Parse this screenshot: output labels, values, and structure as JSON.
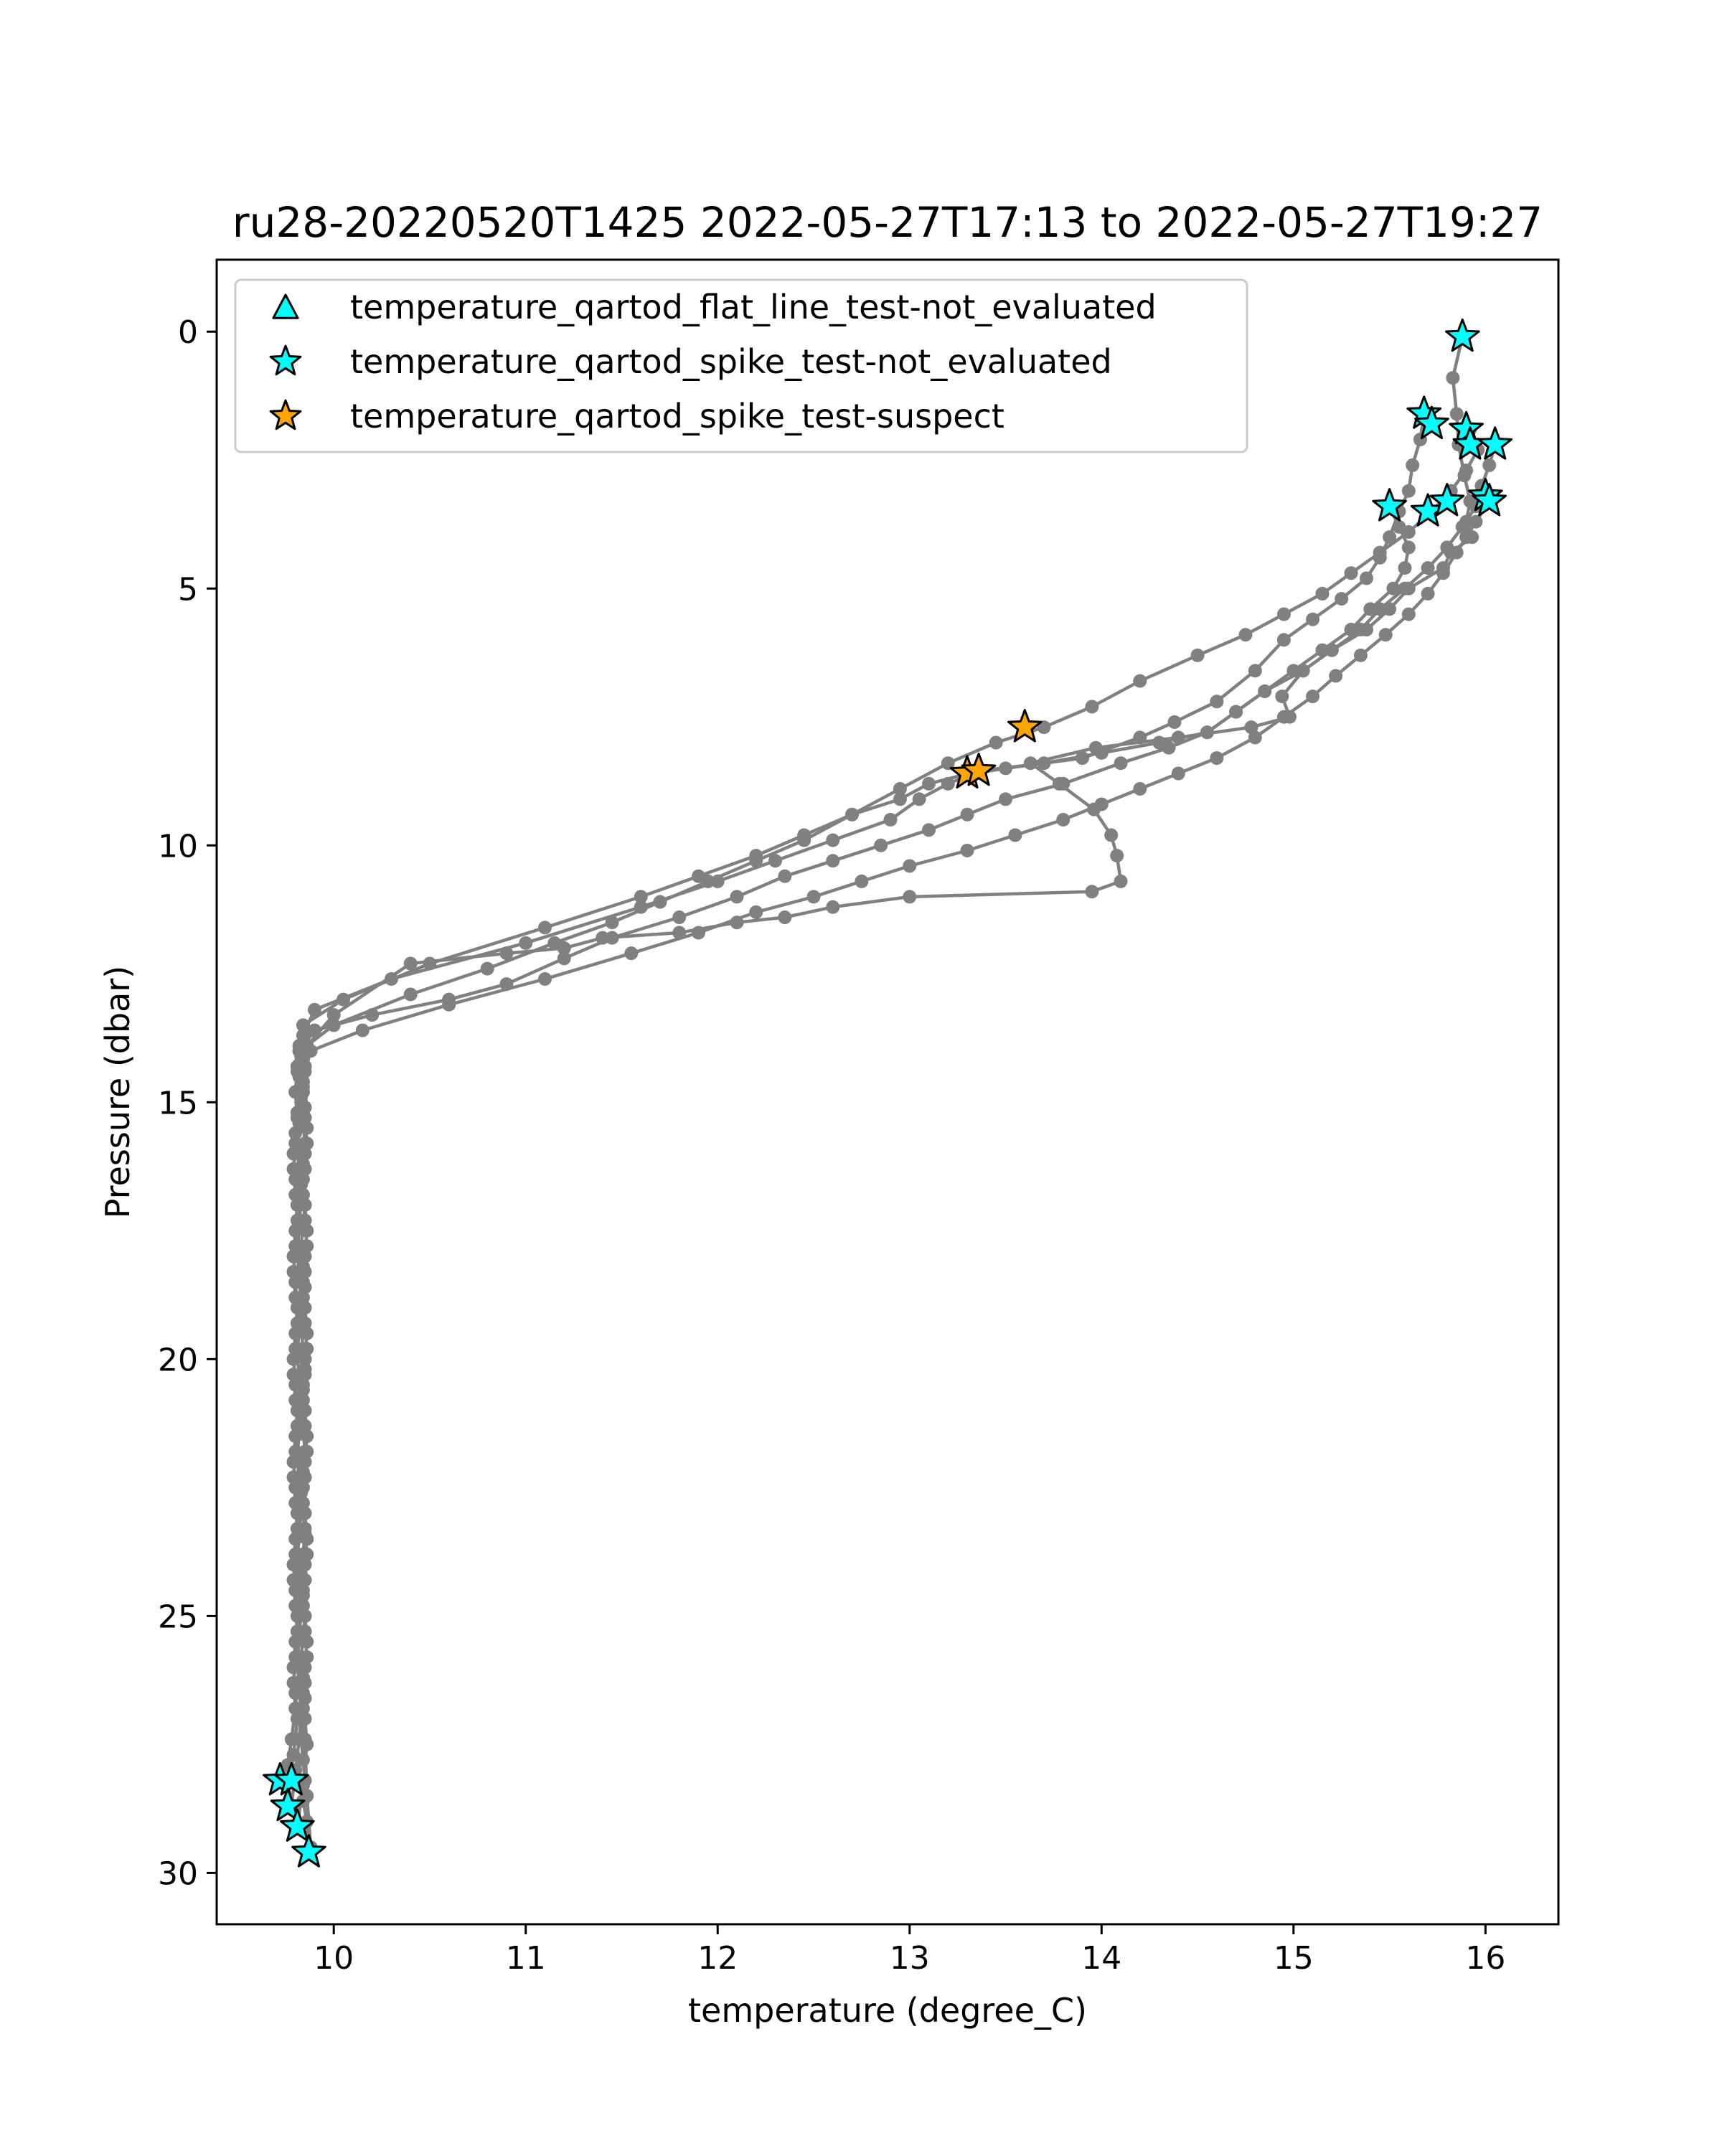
{
  "chart_data": {
    "type": "line",
    "title": "ru28-20220520T1425 2022-05-27T17:13 to 2022-05-27T19:27",
    "xlabel": "temperature (degree_C)",
    "ylabel": "Pressure (dbar)",
    "xlim": [
      9.39,
      16.38
    ],
    "ylim": [
      31.0,
      -1.4
    ],
    "y_inverted": true,
    "grid": false,
    "legend_position": "top-left",
    "xticks": [
      10,
      11,
      12,
      13,
      14,
      15,
      16
    ],
    "yticks": [
      0,
      5,
      10,
      15,
      20,
      25,
      30
    ],
    "line_color": "#808080",
    "profiles": [
      {
        "x": [
          15.88,
          15.83,
          15.85,
          15.86,
          15.89,
          15.92,
          15.9,
          15.93,
          15.82,
          15.78,
          15.6,
          15.5,
          15.38,
          15.2,
          15.05,
          14.94,
          14.98,
          14.78,
          14.4,
          13.97,
          13.63,
          13.78,
          13.96,
          14.05,
          14.08,
          14.1,
          13.95,
          13.0,
          12.6,
          12.35,
          12.1,
          11.8,
          11.4,
          11.2,
          10.9,
          10.4,
          10.0,
          9.86,
          9.83,
          9.84,
          9.83,
          9.84,
          9.85,
          9.84,
          9.83,
          9.85,
          9.84,
          9.83,
          9.84,
          9.85,
          9.84,
          9.83,
          9.84,
          9.85,
          9.84,
          9.83,
          9.84,
          9.85,
          9.84,
          9.83,
          9.84,
          9.85,
          9.84,
          9.83,
          9.84,
          9.85,
          9.84,
          9.83,
          9.84,
          9.85,
          9.84,
          9.83,
          9.84,
          9.85,
          9.84,
          9.86,
          9.87
        ],
        "y": [
          0.1,
          0.9,
          1.6,
          2.2,
          2.8,
          3.3,
          3.7,
          4.0,
          4.3,
          4.6,
          5.0,
          5.4,
          5.8,
          6.2,
          6.6,
          7.1,
          7.5,
          7.7,
          7.9,
          8.1,
          8.4,
          8.8,
          9.3,
          9.8,
          10.2,
          10.7,
          10.9,
          11.0,
          11.2,
          11.4,
          11.5,
          11.7,
          11.8,
          12.0,
          12.1,
          12.3,
          13.3,
          13.9,
          14.2,
          14.6,
          15.0,
          15.4,
          15.8,
          16.2,
          16.6,
          17.0,
          17.4,
          17.8,
          18.2,
          18.6,
          19.0,
          19.4,
          19.8,
          20.2,
          20.6,
          21.0,
          21.4,
          21.8,
          22.2,
          22.6,
          23.0,
          23.4,
          23.8,
          24.2,
          24.6,
          25.0,
          25.4,
          25.8,
          26.2,
          26.6,
          27.0,
          27.4,
          27.8,
          28.2,
          28.6,
          29.0,
          29.6
        ]
      },
      {
        "x": [
          15.68,
          15.66,
          15.62,
          15.6,
          15.55,
          15.5,
          15.45,
          15.38,
          15.25,
          15.1,
          14.95,
          14.8,
          14.6,
          14.38,
          14.2,
          13.9,
          13.5,
          13.33,
          13.2,
          13.05,
          12.9,
          12.6,
          12.3,
          12.0,
          11.6,
          11.0,
          10.3,
          9.9,
          9.84,
          9.83,
          9.82,
          9.83,
          9.82,
          9.81,
          9.82,
          9.83,
          9.82,
          9.81,
          9.82,
          9.83,
          9.82,
          9.81,
          9.82,
          9.83,
          9.82,
          9.81,
          9.82,
          9.83,
          9.82,
          9.81,
          9.82,
          9.83,
          9.82,
          9.81,
          9.82,
          9.83,
          9.82,
          9.8,
          9.78
        ],
        "y": [
          1.6,
          2.1,
          2.6,
          3.1,
          3.5,
          4.0,
          4.4,
          4.8,
          5.2,
          5.6,
          6.0,
          6.6,
          7.2,
          7.6,
          7.9,
          8.3,
          8.5,
          8.6,
          8.8,
          9.1,
          9.5,
          9.9,
          10.3,
          10.7,
          11.2,
          11.9,
          12.6,
          13.2,
          13.7,
          14.1,
          14.5,
          14.9,
          15.4,
          15.9,
          16.4,
          16.9,
          17.4,
          17.9,
          18.4,
          18.9,
          19.4,
          19.9,
          20.4,
          20.9,
          21.4,
          21.9,
          22.4,
          22.9,
          23.4,
          23.9,
          24.4,
          24.9,
          25.4,
          25.9,
          26.4,
          26.9,
          27.4,
          28.0,
          28.7
        ]
      },
      {
        "x": [
          16.05,
          16.02,
          15.98,
          15.95,
          15.88,
          15.8,
          15.7,
          15.58,
          15.45,
          15.35,
          15.2,
          15.05,
          14.85,
          14.7,
          14.55,
          14.3,
          14.0,
          13.7,
          13.36,
          13.1,
          12.95,
          12.7,
          12.45,
          12.2,
          11.9,
          11.6,
          11.1,
          10.5,
          10.05,
          9.84,
          9.82,
          9.81,
          9.8,
          9.81,
          9.8,
          9.79,
          9.8,
          9.81,
          9.8,
          9.79,
          9.8,
          9.81,
          9.8,
          9.79,
          9.8,
          9.81,
          9.8,
          9.79,
          9.8,
          9.81,
          9.8,
          9.79,
          9.8,
          9.81,
          9.8,
          9.79,
          9.8,
          9.78,
          9.76,
          9.73
        ],
        "y": [
          2.2,
          2.6,
          3.0,
          3.4,
          3.8,
          4.2,
          4.6,
          5.0,
          5.4,
          5.8,
          6.2,
          6.6,
          7.0,
          7.4,
          7.8,
          8.0,
          8.2,
          8.4,
          8.55,
          8.8,
          9.1,
          9.4,
          9.8,
          10.2,
          10.6,
          11.0,
          11.6,
          12.3,
          13.0,
          13.5,
          13.9,
          14.3,
          14.8,
          15.3,
          15.8,
          16.3,
          16.8,
          17.3,
          17.8,
          18.3,
          18.8,
          19.3,
          19.8,
          20.3,
          20.8,
          21.3,
          21.8,
          22.3,
          22.8,
          23.3,
          23.8,
          24.3,
          24.8,
          25.3,
          25.8,
          26.3,
          26.8,
          27.4,
          27.9,
          28.2
        ]
      },
      {
        "x": [
          15.5,
          15.55,
          15.6,
          15.58,
          15.52,
          15.4,
          15.3,
          15.15,
          15.0,
          14.85,
          14.7,
          14.55,
          14.35,
          14.1,
          13.8,
          13.5,
          13.3,
          13.1,
          12.85,
          12.6,
          12.35,
          12.1,
          11.8,
          11.45,
          11.2,
          10.9,
          10.6,
          10.2,
          9.9,
          9.82,
          9.81,
          9.8,
          9.81,
          9.8,
          9.79,
          9.8,
          9.81,
          9.8,
          9.79,
          9.8,
          9.81,
          9.8,
          9.79,
          9.8,
          9.81,
          9.8,
          9.79,
          9.8,
          9.81,
          9.8,
          9.79,
          9.8,
          9.81,
          9.8,
          9.79,
          9.8,
          9.81,
          9.79,
          9.77
        ],
        "y": [
          3.4,
          3.8,
          4.2,
          4.6,
          5.0,
          5.4,
          5.8,
          6.2,
          6.6,
          7.0,
          7.4,
          7.8,
          8.1,
          8.4,
          8.8,
          9.1,
          9.4,
          9.7,
          10.0,
          10.3,
          10.6,
          11.0,
          11.4,
          11.8,
          12.2,
          12.7,
          13.0,
          13.3,
          13.6,
          14.0,
          14.4,
          14.8,
          15.2,
          15.6,
          16.0,
          16.5,
          17.0,
          17.5,
          18.0,
          18.5,
          19.0,
          19.5,
          20.0,
          20.5,
          21.0,
          21.5,
          22.0,
          22.5,
          23.0,
          23.5,
          24.0,
          24.5,
          25.0,
          25.5,
          26.0,
          26.5,
          27.0,
          27.7,
          28.2
        ]
      },
      {
        "x": [
          16.02,
          15.95,
          15.9,
          15.85,
          15.78,
          15.7,
          15.6,
          15.48,
          15.35,
          15.22,
          15.1,
          14.95,
          14.8,
          14.6,
          14.4,
          14.2,
          14.0,
          13.8,
          13.55,
          13.3,
          13.0,
          12.75,
          12.5,
          12.2,
          11.9,
          11.55,
          11.1,
          10.6,
          10.15,
          9.88,
          9.85,
          9.84,
          9.85,
          9.86,
          9.85,
          9.84,
          9.85,
          9.86,
          9.85,
          9.84,
          9.85,
          9.86,
          9.85,
          9.84,
          9.85,
          9.86,
          9.85,
          9.84,
          9.85,
          9.86,
          9.85,
          9.84,
          9.85,
          9.86,
          9.85,
          9.84,
          9.85,
          9.86,
          9.88
        ],
        "y": [
          3.3,
          3.7,
          4.0,
          4.3,
          4.7,
          5.1,
          5.5,
          5.9,
          6.3,
          6.7,
          7.1,
          7.5,
          7.9,
          8.3,
          8.6,
          8.9,
          9.2,
          9.5,
          9.8,
          10.1,
          10.4,
          10.7,
          11.0,
          11.3,
          11.7,
          12.1,
          12.6,
          13.1,
          13.6,
          14.0,
          14.4,
          14.8,
          15.3,
          15.8,
          16.3,
          16.8,
          17.3,
          17.8,
          18.3,
          18.8,
          19.3,
          19.8,
          20.3,
          20.8,
          21.3,
          21.8,
          22.3,
          22.8,
          23.3,
          23.8,
          24.3,
          24.8,
          25.3,
          25.8,
          26.3,
          26.8,
          27.4,
          28.5,
          29.5
        ]
      },
      {
        "x": [
          15.92,
          15.96,
          15.9,
          15.82,
          15.72,
          15.6,
          15.45,
          15.3,
          15.15,
          14.95,
          14.75,
          14.5,
          14.2,
          13.95,
          13.7,
          13.45,
          13.2,
          12.95,
          12.7,
          12.45,
          12.2,
          11.95,
          11.7,
          11.45,
          11.15,
          10.8,
          10.4,
          10.0,
          9.86,
          9.85,
          9.84,
          9.85,
          9.86,
          9.85,
          9.84,
          9.85,
          9.86,
          9.85,
          9.84,
          9.85,
          9.86,
          9.85,
          9.84,
          9.85,
          9.86,
          9.85,
          9.84,
          9.85,
          9.86,
          9.85,
          9.84,
          9.85,
          9.86,
          9.85,
          9.84,
          9.85,
          9.86,
          9.84,
          9.81
        ],
        "y": [
          1.9,
          2.3,
          2.7,
          3.1,
          3.5,
          3.9,
          4.3,
          4.7,
          5.1,
          5.5,
          5.9,
          6.3,
          6.8,
          7.3,
          7.7,
          8.0,
          8.4,
          8.9,
          9.4,
          9.9,
          10.3,
          10.7,
          11.1,
          11.5,
          11.9,
          12.4,
          12.9,
          13.5,
          13.9,
          14.3,
          14.7,
          15.1,
          15.5,
          16.0,
          16.5,
          17.0,
          17.5,
          18.0,
          18.5,
          19.0,
          19.5,
          20.0,
          20.5,
          21.0,
          21.5,
          22.0,
          22.5,
          23.0,
          23.5,
          24.0,
          24.5,
          25.0,
          25.5,
          26.0,
          26.5,
          27.0,
          27.5,
          28.3,
          29.1
        ]
      }
    ],
    "series": [
      {
        "name": "temperature_qartod_flat_line_test-not_evaluated",
        "marker": "triangle",
        "color": "#00ffff",
        "x": [],
        "y": []
      },
      {
        "name": "temperature_qartod_spike_test-not_evaluated",
        "marker": "star",
        "color": "#00ffff",
        "x": [
          15.88,
          15.68,
          15.72,
          15.9,
          15.92,
          16.05,
          15.5,
          15.7,
          15.8,
          16.0,
          16.02,
          9.72,
          9.78,
          9.76,
          9.81,
          9.87
        ],
        "y": [
          0.1,
          1.6,
          1.8,
          1.9,
          2.2,
          2.2,
          3.4,
          3.5,
          3.3,
          3.2,
          3.3,
          28.2,
          28.2,
          28.7,
          29.1,
          29.6
        ]
      },
      {
        "name": "temperature_qartod_spike_test-suspect",
        "marker": "star",
        "color": "#ffa500",
        "x": [
          13.6,
          13.3,
          13.36
        ],
        "y": [
          7.7,
          8.6,
          8.55
        ]
      }
    ]
  }
}
